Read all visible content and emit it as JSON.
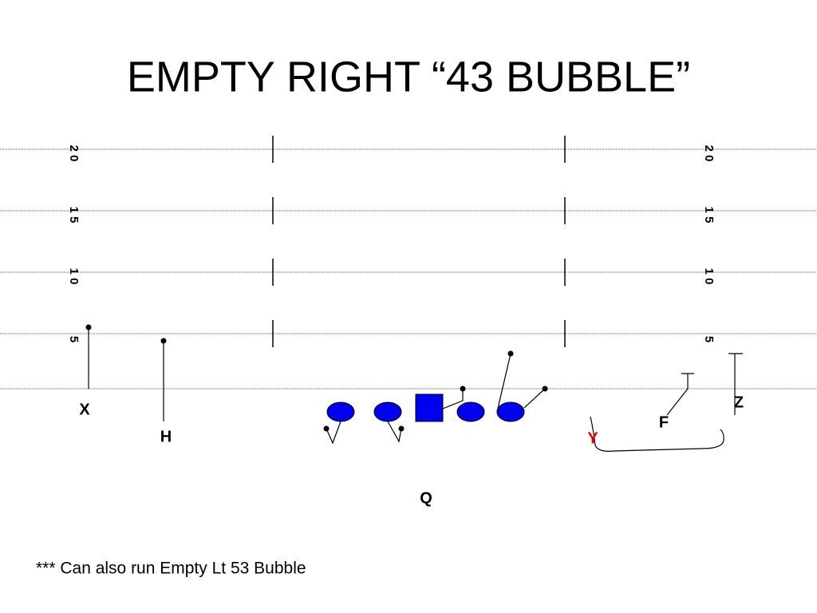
{
  "title": "EMPTY RIGHT “43 BUBBLE”",
  "yard_numbers": {
    "left": [
      "2 0",
      "1 5",
      "1 0",
      "5"
    ],
    "right": [
      "2 0",
      "1 5",
      "1 0",
      "5"
    ]
  },
  "players": [
    "X",
    "H",
    "Y",
    "F",
    "Z",
    "Q"
  ],
  "note": "*** Can also run Empty Lt 53 Bubble"
}
